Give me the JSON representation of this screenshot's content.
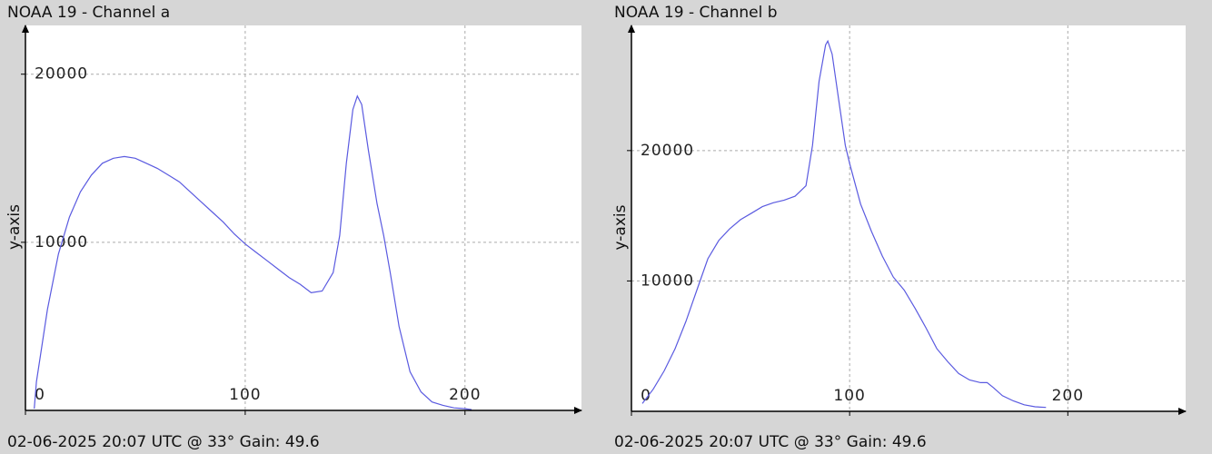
{
  "chart_data": [
    {
      "type": "line",
      "title": "NOAA 19 - Channel a",
      "footer": "02-06-2025 20:07 UTC @ 33° Gain: 49.6",
      "ylabel": "y-axis",
      "x": [
        4,
        5,
        10,
        15,
        20,
        25,
        30,
        35,
        40,
        45,
        50,
        55,
        60,
        65,
        70,
        75,
        80,
        85,
        90,
        95,
        100,
        105,
        110,
        115,
        120,
        125,
        130,
        135,
        140,
        143,
        146,
        149,
        151,
        153,
        156,
        160,
        163,
        166,
        170,
        175,
        180,
        185,
        190,
        195,
        200,
        203
      ],
      "values": [
        100,
        1700,
        6000,
        9300,
        11500,
        13000,
        14000,
        14700,
        15000,
        15100,
        15000,
        14700,
        14400,
        14000,
        13600,
        13000,
        12400,
        11800,
        11200,
        10500,
        9900,
        9400,
        8900,
        8400,
        7900,
        7500,
        7000,
        7100,
        8200,
        10400,
        14700,
        17900,
        18700,
        18200,
        15500,
        12300,
        10400,
        8200,
        5000,
        2300,
        1100,
        500,
        300,
        150,
        100,
        50
      ],
      "color": "#5a5ae0",
      "xlim": [
        0,
        253
      ],
      "ylim": [
        0,
        22900
      ],
      "xticks": [
        0,
        100,
        200
      ],
      "yticks": [
        10000,
        20000
      ],
      "grid": true
    },
    {
      "type": "line",
      "title": "NOAA 19 - Channel b",
      "footer": "02-06-2025 20:07 UTC @ 33° Gain: 49.6",
      "ylabel": "y-axis",
      "x": [
        5,
        10,
        15,
        20,
        25,
        30,
        35,
        40,
        45,
        50,
        55,
        60,
        65,
        70,
        75,
        80,
        83,
        86,
        89,
        90,
        92,
        95,
        98,
        100,
        105,
        110,
        115,
        120,
        125,
        130,
        135,
        140,
        145,
        150,
        155,
        160,
        163,
        166,
        170,
        175,
        180,
        185,
        190
      ],
      "values": [
        600,
        1700,
        3100,
        4800,
        6900,
        9300,
        11700,
        13100,
        14000,
        14700,
        15200,
        15700,
        16000,
        16200,
        16500,
        17300,
        20400,
        25300,
        28100,
        28400,
        27400,
        23900,
        20400,
        19000,
        15900,
        13800,
        11900,
        10300,
        9300,
        7900,
        6400,
        4800,
        3800,
        2900,
        2400,
        2200,
        2200,
        1800,
        1200,
        800,
        500,
        350,
        300
      ],
      "color": "#5a5ae0",
      "xlim": [
        0,
        254
      ],
      "ylim": [
        0,
        29600
      ],
      "xticks": [
        0,
        100,
        200
      ],
      "yticks": [
        10000,
        20000
      ],
      "grid": true
    }
  ]
}
